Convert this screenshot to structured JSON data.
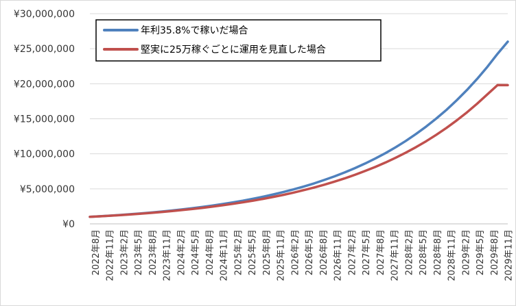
{
  "chart_data": {
    "type": "line",
    "title": "",
    "xlabel": "",
    "ylabel": "",
    "ylim": [
      0,
      30000000
    ],
    "yticks": [
      0,
      5000000,
      10000000,
      15000000,
      20000000,
      25000000,
      30000000
    ],
    "ytick_labels": [
      "¥0",
      "¥5,000,000",
      "¥10,000,000",
      "¥15,000,000",
      "¥20,000,000",
      "¥25,000,000",
      "¥30,000,000"
    ],
    "x_tick_labels": [
      "2022年8月",
      "2022年11月",
      "2023年2月",
      "2023年5月",
      "2023年8月",
      "2023年11月",
      "2024年2月",
      "2024年5月",
      "2024年8月",
      "2024年11月",
      "2025年2月",
      "2025年5月",
      "2025年8月",
      "2025年11月",
      "2026年2月",
      "2026年5月",
      "2026年8月",
      "2026年11月",
      "2027年2月",
      "2027年5月",
      "2027年8月",
      "2027年11月",
      "2028年2月",
      "2028年5月",
      "2028年8月",
      "2028年11月",
      "2029年2月",
      "2029年5月",
      "2029年8月",
      "2029年11月"
    ],
    "grid": true,
    "legend_position": "top-left",
    "series": [
      {
        "name": "年利35.8%で稼いだ場合",
        "color": "#4f81bd",
        "values": [
          1000000,
          1083000,
          1173000,
          1270000,
          1376000,
          1490000,
          1614000,
          1748000,
          1893000,
          2050000,
          2220000,
          2404000,
          2604000,
          2820000,
          3054000,
          3307000,
          3582000,
          3879000,
          4201000,
          4550000,
          4927000,
          5336000,
          5779000,
          6259000,
          6778000,
          7341000,
          7950000,
          8609000,
          9324000,
          10098000,
          10936000,
          11844000,
          12827000,
          13891000,
          15044000,
          16293000,
          17645000,
          19110000,
          20696000,
          22414000,
          24274000,
          26000000
        ]
      },
      {
        "name": "堅実に25万稼ぐごとに運用を見直した場合",
        "color": "#c0504d",
        "values": [
          1000000,
          1078000,
          1162000,
          1253000,
          1350000,
          1455000,
          1568000,
          1690000,
          1821000,
          1963000,
          2115000,
          2279000,
          2456000,
          2647000,
          2852000,
          3074000,
          3313000,
          3570000,
          3847000,
          4146000,
          4468000,
          4815000,
          5188000,
          5591000,
          6025000,
          6493000,
          6997000,
          7540000,
          8125000,
          8756000,
          9435000,
          10168000,
          10957000,
          11807000,
          12724000,
          13711000,
          14776000,
          15923000,
          17158000,
          18490000,
          19811000,
          19800000
        ]
      }
    ]
  }
}
